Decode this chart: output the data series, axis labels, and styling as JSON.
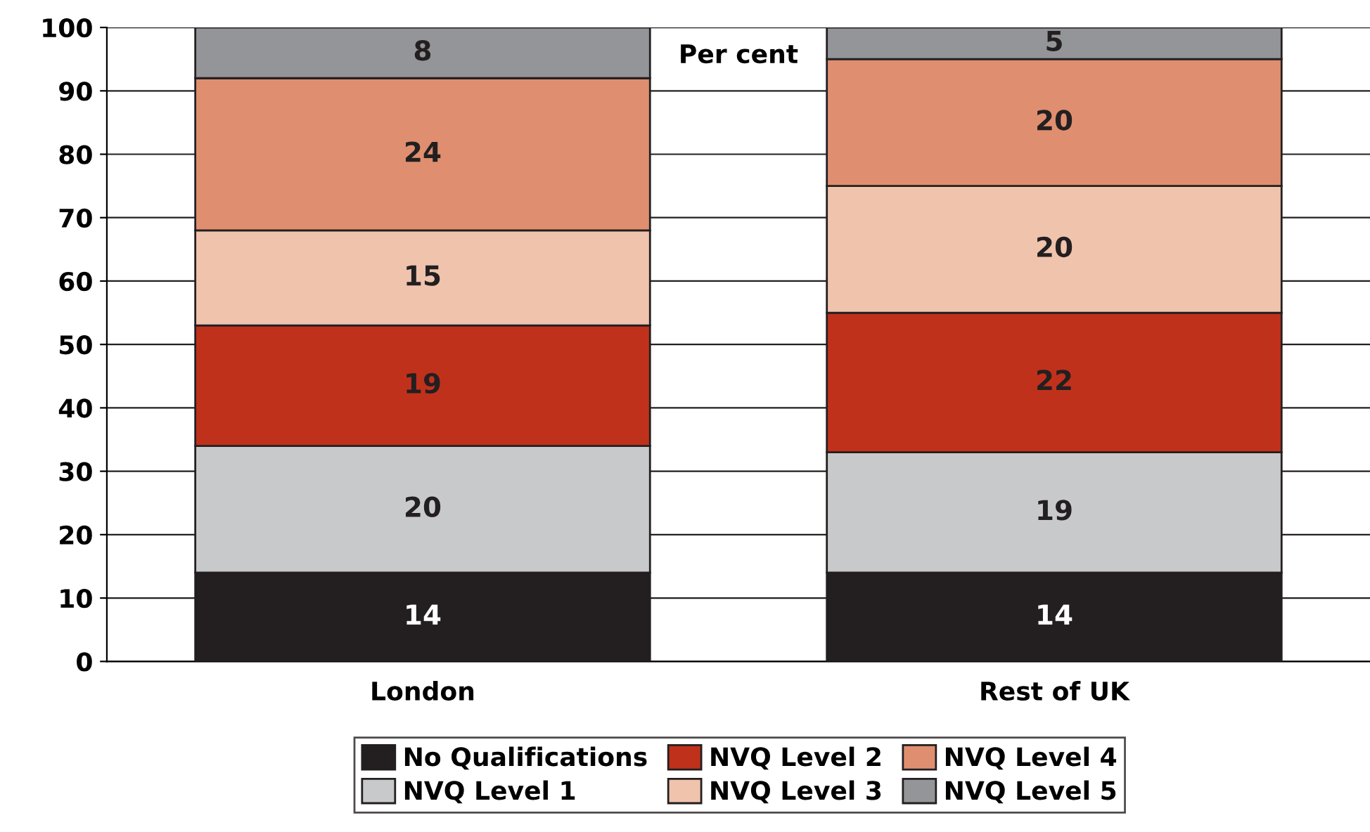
{
  "chart_data": {
    "type": "bar",
    "stacked": true,
    "ylabel": "Per cent",
    "categories": [
      "London",
      "Rest of UK"
    ],
    "series": [
      {
        "name": "No Qualifications",
        "color": "#231f20",
        "values": [
          14,
          14
        ]
      },
      {
        "name": "NVQ Level 1",
        "color": "#c8c9cb",
        "values": [
          20,
          19
        ]
      },
      {
        "name": "NVQ Level 2",
        "color": "#c0311c",
        "values": [
          19,
          22
        ]
      },
      {
        "name": "NVQ Level 3",
        "color": "#f0c3ad",
        "values": [
          15,
          20
        ]
      },
      {
        "name": "NVQ Level 4",
        "color": "#df8f6f",
        "values": [
          24,
          20
        ]
      },
      {
        "name": "NVQ Level 5",
        "color": "#939598",
        "values": [
          8,
          5
        ]
      }
    ],
    "ylim": [
      0,
      100
    ],
    "yticks": [
      0,
      10,
      20,
      30,
      40,
      50,
      60,
      70,
      80,
      90,
      100
    ],
    "grid": "y",
    "legend": "bottom",
    "data_labels": true
  }
}
